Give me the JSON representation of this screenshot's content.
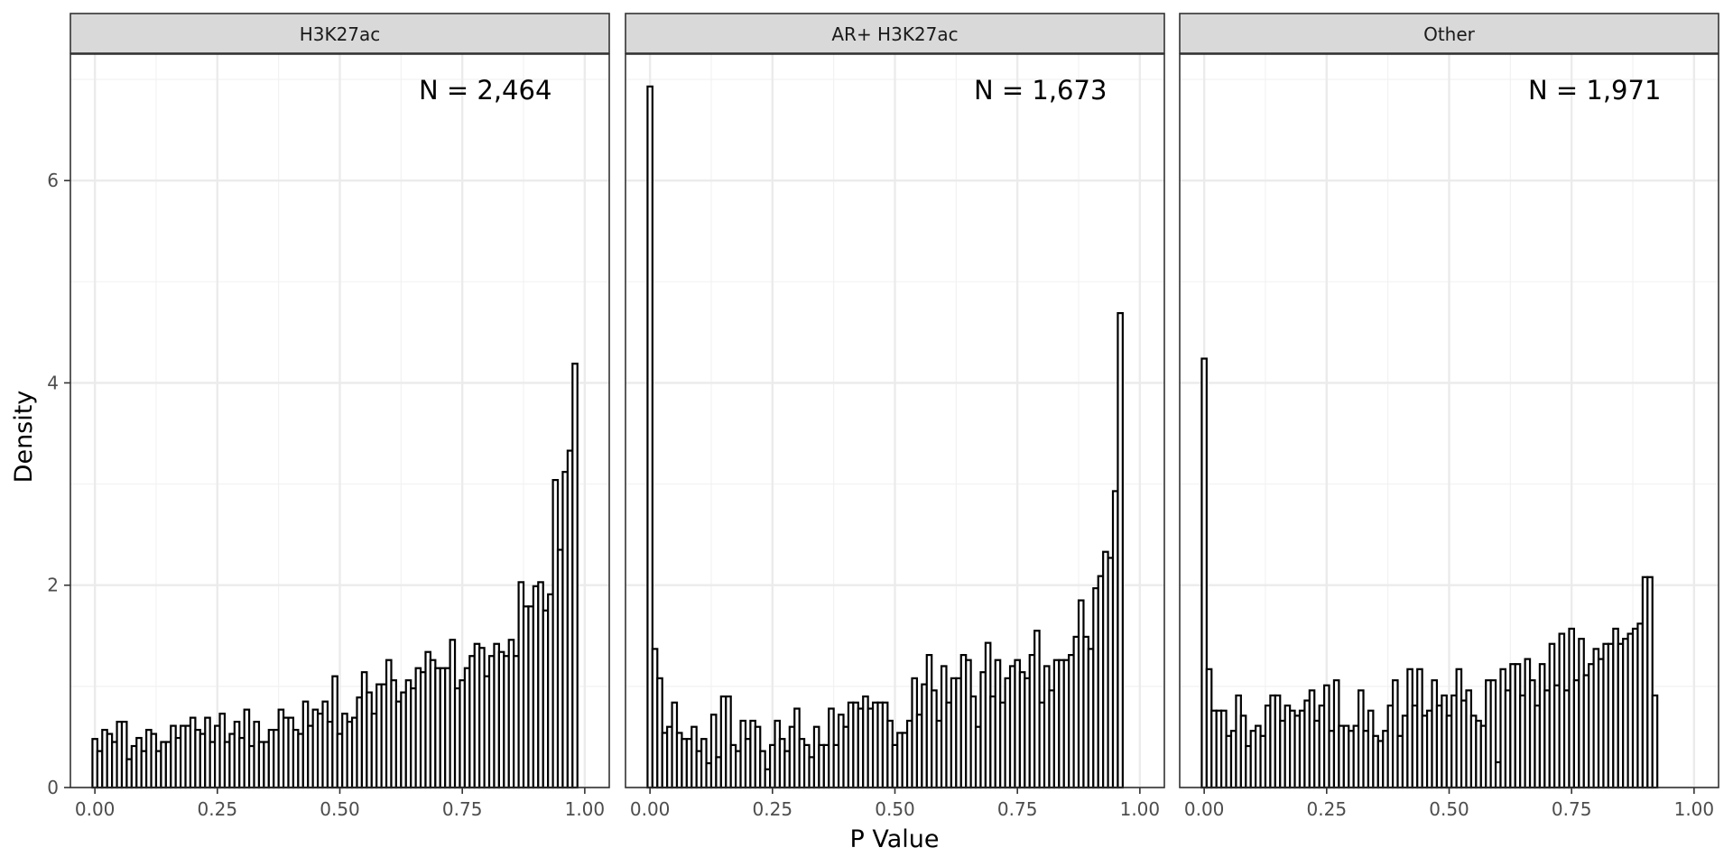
{
  "chart_data": {
    "type": "histogram",
    "xlabel": "P Value",
    "ylabel": "Density",
    "xlim": [
      -0.05,
      1.05
    ],
    "ylim": [
      0,
      7.25
    ],
    "x_ticks": [
      "0.00",
      "0.25",
      "0.50",
      "0.75",
      "1.00"
    ],
    "x_tick_values": [
      0,
      0.25,
      0.5,
      0.75,
      1.0
    ],
    "y_ticks": [
      "0",
      "2",
      "4",
      "6"
    ],
    "y_tick_values": [
      0,
      2,
      4,
      6
    ],
    "bin_width": 0.01,
    "bin_starts": -0.005,
    "bar_fill": "#ffffff",
    "bar_stroke": "#000000",
    "strip_fill": "#d9d9d9",
    "grid": true,
    "panels": [
      {
        "title": "H3K27ac",
        "n_label": "N = 2,464",
        "values": [
          0.48,
          0.36,
          0.57,
          0.53,
          0.45,
          0.65,
          0.65,
          0.28,
          0.41,
          0.49,
          0.36,
          0.57,
          0.53,
          0.36,
          0.45,
          0.45,
          0.61,
          0.49,
          0.61,
          0.61,
          0.69,
          0.57,
          0.53,
          0.69,
          0.45,
          0.61,
          0.73,
          0.45,
          0.53,
          0.65,
          0.49,
          0.77,
          0.41,
          0.65,
          0.45,
          0.45,
          0.57,
          0.57,
          0.77,
          0.69,
          0.69,
          0.57,
          0.53,
          0.85,
          0.61,
          0.77,
          0.73,
          0.85,
          0.65,
          1.1,
          0.53,
          0.73,
          0.65,
          0.69,
          0.89,
          1.14,
          0.94,
          0.73,
          1.02,
          1.02,
          1.26,
          1.06,
          0.85,
          0.94,
          1.06,
          0.98,
          1.18,
          1.14,
          1.34,
          1.26,
          1.18,
          1.18,
          1.18,
          1.46,
          0.98,
          1.06,
          1.18,
          1.3,
          1.42,
          1.38,
          1.1,
          1.3,
          1.42,
          1.34,
          1.3,
          1.46,
          1.3,
          2.03,
          1.79,
          1.79,
          1.99,
          2.03,
          1.75,
          1.91,
          3.04,
          2.35,
          3.12,
          3.33,
          4.19,
          0.0
        ]
      },
      {
        "title": "AR+ H3K27ac",
        "n_label": "N = 1,673",
        "values": [
          6.93,
          1.37,
          1.08,
          0.54,
          0.6,
          0.84,
          0.54,
          0.48,
          0.48,
          0.6,
          0.36,
          0.48,
          0.24,
          0.72,
          0.3,
          0.9,
          0.9,
          0.42,
          0.36,
          0.66,
          0.48,
          0.66,
          0.6,
          0.36,
          0.18,
          0.42,
          0.66,
          0.48,
          0.36,
          0.6,
          0.78,
          0.48,
          0.42,
          0.3,
          0.6,
          0.42,
          0.42,
          0.78,
          0.42,
          0.72,
          0.6,
          0.84,
          0.84,
          0.78,
          0.9,
          0.78,
          0.84,
          0.84,
          0.84,
          0.66,
          0.42,
          0.54,
          0.54,
          0.66,
          1.08,
          0.72,
          1.02,
          1.31,
          0.96,
          0.66,
          1.2,
          0.84,
          1.08,
          1.08,
          1.31,
          1.26,
          0.9,
          0.6,
          1.14,
          1.43,
          0.9,
          1.26,
          0.84,
          1.08,
          1.2,
          1.26,
          1.14,
          1.08,
          1.31,
          1.55,
          0.84,
          1.2,
          0.96,
          1.26,
          1.26,
          1.26,
          1.31,
          1.49,
          1.85,
          1.49,
          1.37,
          1.97,
          2.09,
          2.33,
          2.27,
          2.93,
          4.69,
          0.0,
          0.0,
          0.0
        ]
      },
      {
        "title": "Other",
        "n_label": "N = 1,971",
        "values": [
          4.24,
          1.17,
          0.76,
          0.76,
          0.76,
          0.51,
          0.56,
          0.91,
          0.71,
          0.41,
          0.56,
          0.61,
          0.51,
          0.81,
          0.91,
          0.91,
          0.66,
          0.81,
          0.76,
          0.71,
          0.76,
          0.86,
          0.96,
          0.66,
          0.81,
          1.01,
          0.56,
          1.06,
          0.61,
          0.61,
          0.56,
          0.61,
          0.96,
          0.56,
          0.76,
          0.51,
          0.46,
          0.56,
          0.81,
          1.06,
          0.51,
          0.71,
          1.17,
          0.81,
          1.17,
          0.71,
          0.76,
          1.06,
          0.81,
          0.91,
          0.71,
          0.91,
          1.17,
          0.86,
          0.96,
          0.71,
          0.66,
          0.61,
          1.06,
          1.06,
          0.25,
          1.17,
          0.96,
          1.22,
          1.22,
          0.91,
          1.27,
          1.06,
          0.81,
          1.22,
          0.96,
          1.42,
          1.01,
          1.52,
          0.96,
          1.57,
          1.06,
          1.47,
          1.11,
          1.22,
          1.37,
          1.27,
          1.42,
          1.42,
          1.57,
          1.42,
          1.47,
          1.52,
          1.57,
          1.62,
          2.08,
          2.08,
          0.91,
          0.0,
          0.0,
          0.0,
          0.0,
          0.0,
          0.0,
          0.0
        ]
      }
    ]
  }
}
